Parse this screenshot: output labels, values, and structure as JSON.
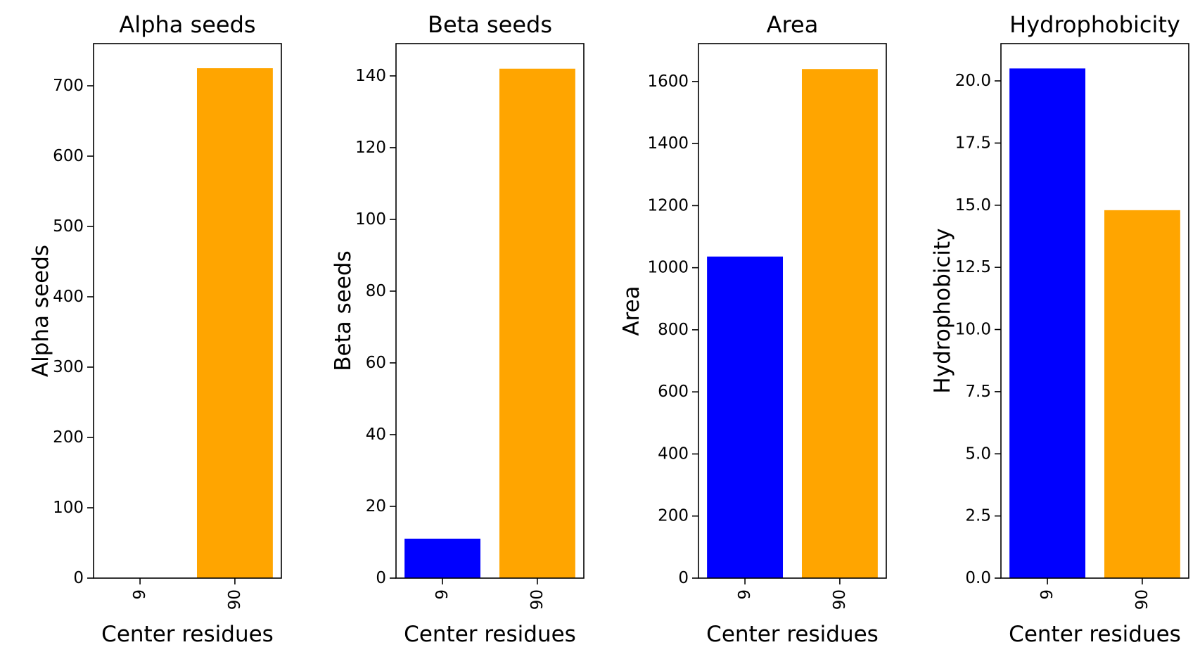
{
  "chart_data": [
    {
      "type": "bar",
      "title": "Alpha seeds",
      "xlabel": "Center residues",
      "ylabel": "Alpha seeds",
      "categories": [
        "9",
        "90"
      ],
      "values": [
        0,
        725
      ],
      "colors": [
        "#0000ff",
        "#ffa500"
      ],
      "ylim": [
        0,
        760
      ],
      "yticks": [
        0,
        100,
        200,
        300,
        400,
        500,
        600,
        700
      ],
      "ytick_labels": [
        "0",
        "100",
        "200",
        "300",
        "400",
        "500",
        "600",
        "700"
      ],
      "grid": false,
      "legend": false
    },
    {
      "type": "bar",
      "title": "Beta seeds",
      "xlabel": "Center residues",
      "ylabel": "Beta seeds",
      "categories": [
        "9",
        "90"
      ],
      "values": [
        11,
        142
      ],
      "colors": [
        "#0000ff",
        "#ffa500"
      ],
      "ylim": [
        0,
        149
      ],
      "yticks": [
        0,
        20,
        40,
        60,
        80,
        100,
        120,
        140
      ],
      "ytick_labels": [
        "0",
        "20",
        "40",
        "60",
        "80",
        "100",
        "120",
        "140"
      ],
      "grid": false,
      "legend": false
    },
    {
      "type": "bar",
      "title": "Area",
      "xlabel": "Center residues",
      "ylabel": "Area",
      "categories": [
        "9",
        "90"
      ],
      "values": [
        1036,
        1640
      ],
      "colors": [
        "#0000ff",
        "#ffa500"
      ],
      "ylim": [
        0,
        1722
      ],
      "yticks": [
        0,
        200,
        400,
        600,
        800,
        1000,
        1200,
        1400,
        1600
      ],
      "ytick_labels": [
        "0",
        "200",
        "400",
        "600",
        "800",
        "1000",
        "1200",
        "1400",
        "1600"
      ],
      "grid": false,
      "legend": false
    },
    {
      "type": "bar",
      "title": "Hydrophobicity",
      "xlabel": "Center residues",
      "ylabel": "Hydrophobicity",
      "categories": [
        "9",
        "90"
      ],
      "values": [
        20.5,
        14.8
      ],
      "colors": [
        "#0000ff",
        "#ffa500"
      ],
      "ylim": [
        0,
        21.5
      ],
      "yticks": [
        0,
        2.5,
        5,
        7.5,
        10,
        12.5,
        15,
        17.5,
        20
      ],
      "ytick_labels": [
        "0.0",
        "2.5",
        "5.0",
        "7.5",
        "10.0",
        "12.5",
        "15.0",
        "17.5",
        "20.0"
      ],
      "grid": false,
      "legend": false
    }
  ]
}
